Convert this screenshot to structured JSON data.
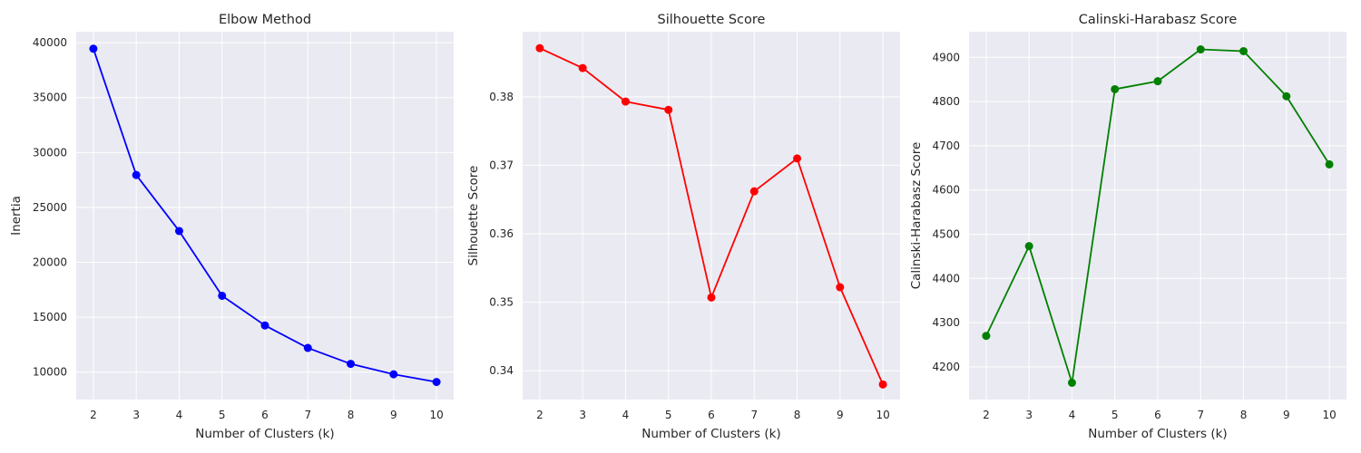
{
  "chart_data": [
    {
      "type": "line",
      "title": "Elbow Method",
      "xlabel": "Number of Clusters (k)",
      "ylabel": "Inertia",
      "x": [
        2,
        3,
        4,
        5,
        6,
        7,
        8,
        9,
        10
      ],
      "series": [
        {
          "values": [
            39450,
            27950,
            22850,
            16950,
            14250,
            12200,
            10750,
            9800,
            9100
          ],
          "color": "#0000ff"
        }
      ],
      "xlim": [
        1.6,
        10.4
      ],
      "ylim": [
        7500,
        41000
      ],
      "xticks": [
        2,
        3,
        4,
        5,
        6,
        7,
        8,
        9,
        10
      ],
      "yticks": [
        10000,
        15000,
        20000,
        25000,
        30000,
        35000,
        40000
      ],
      "ytick_decimals": 0,
      "grid": true,
      "marker": "circle",
      "background": "#eaeaf2"
    },
    {
      "type": "line",
      "title": "Silhouette Score",
      "xlabel": "Number of Clusters (k)",
      "ylabel": "Silhouette Score",
      "x": [
        2,
        3,
        4,
        5,
        6,
        7,
        8,
        9,
        10
      ],
      "series": [
        {
          "values": [
            0.3871,
            0.3842,
            0.3793,
            0.3781,
            0.3507,
            0.3662,
            0.371,
            0.3522,
            0.338
          ],
          "color": "#ff0000"
        }
      ],
      "xlim": [
        1.6,
        10.4
      ],
      "ylim": [
        0.3358,
        0.3895
      ],
      "xticks": [
        2,
        3,
        4,
        5,
        6,
        7,
        8,
        9,
        10
      ],
      "yticks": [
        0.34,
        0.35,
        0.36,
        0.37,
        0.38
      ],
      "ytick_decimals": 2,
      "grid": true,
      "marker": "circle",
      "background": "#eaeaf2"
    },
    {
      "type": "line",
      "title": "Calinski-Harabasz Score",
      "xlabel": "Number of Clusters (k)",
      "ylabel": "Calinski-Harabasz Score",
      "x": [
        2,
        3,
        4,
        5,
        6,
        7,
        8,
        9,
        10
      ],
      "series": [
        {
          "values": [
            4270,
            4473,
            4164,
            4828,
            4846,
            4918,
            4914,
            4812,
            4658
          ],
          "color": "#008000"
        }
      ],
      "xlim": [
        1.6,
        10.4
      ],
      "ylim": [
        4126,
        4958
      ],
      "xticks": [
        2,
        3,
        4,
        5,
        6,
        7,
        8,
        9,
        10
      ],
      "yticks": [
        4200,
        4300,
        4400,
        4500,
        4600,
        4700,
        4800,
        4900
      ],
      "ytick_decimals": 0,
      "grid": true,
      "marker": "circle",
      "background": "#eaeaf2"
    }
  ]
}
